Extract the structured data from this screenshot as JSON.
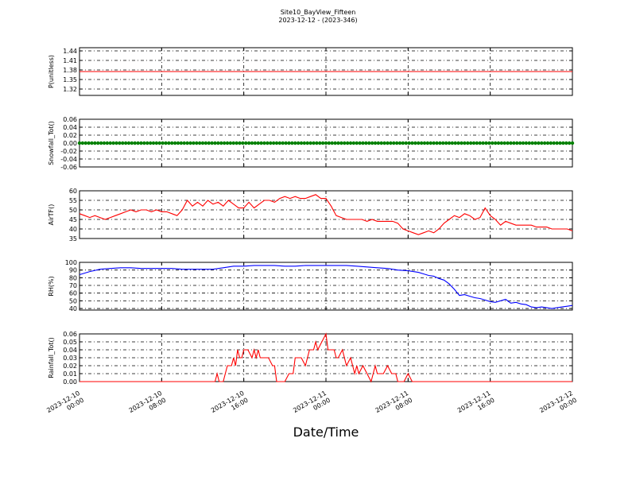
{
  "title": "Site10_BayView_Fifteen",
  "subtitle": "2023-12-12 - (2023-346)",
  "xlabel": "Date/Time",
  "chart_data": {
    "type": "line",
    "grid": true,
    "x_ticks": [
      "2023-12-10 00:00",
      "2023-12-10 08:00",
      "2023-12-10 16:00",
      "2023-12-11 00:00",
      "2023-12-11 08:00",
      "2023-12-11 16:00",
      "2023-12-12 00:00"
    ],
    "xlim_hours": [
      0,
      48
    ],
    "panels": [
      {
        "ylabel": "P(unitless)",
        "ylim": [
          1.3,
          1.45
        ],
        "yticks": [
          1.32,
          1.35,
          1.38,
          1.41,
          1.44
        ],
        "color": "#ff0000",
        "marker": "none",
        "x_hours": [
          0,
          48
        ],
        "values": [
          1.375,
          1.375
        ]
      },
      {
        "ylabel": "Snowfall_Tot()",
        "ylim": [
          -0.06,
          0.06
        ],
        "yticks": [
          0.06,
          0.04,
          0.02,
          0.0,
          -0.02,
          -0.04,
          -0.06
        ],
        "color": "#008000",
        "marker": "dot",
        "x_hours": [
          0,
          48
        ],
        "values": [
          0.0,
          0.0
        ]
      },
      {
        "ylabel": "AirTF()",
        "ylim": [
          35,
          60
        ],
        "yticks": [
          60,
          55,
          50,
          45,
          40,
          35
        ],
        "color": "#ff0000",
        "marker": "none",
        "x_hours": [
          0,
          0.5,
          1,
          1.5,
          2,
          2.5,
          3,
          3.5,
          4,
          4.5,
          5,
          5.5,
          6,
          6.5,
          7,
          7.5,
          8,
          8.5,
          9,
          9.5,
          10,
          10.5,
          11,
          11.5,
          12,
          12.5,
          13,
          13.5,
          14,
          14.5,
          15,
          15.5,
          16,
          16.5,
          17,
          17.5,
          18,
          18.5,
          19,
          19.5,
          20,
          20.5,
          21,
          21.5,
          22,
          22.5,
          23,
          23.5,
          24,
          24.5,
          25,
          25.5,
          26,
          26.5,
          27,
          27.5,
          28,
          28.5,
          29,
          29.5,
          30,
          30.5,
          31,
          31.5,
          32,
          32.5,
          33,
          33.5,
          34,
          34.5,
          35,
          35.5,
          36,
          36.5,
          37,
          37.5,
          38,
          38.5,
          39,
          39.5,
          40,
          40.5,
          41,
          41.5,
          42,
          42.5,
          43,
          43.5,
          44,
          44.5,
          45,
          45.5,
          46,
          46.5,
          47,
          47.5,
          48
        ],
        "values": [
          48,
          47,
          46,
          47,
          46,
          45,
          46,
          47,
          48,
          49,
          50,
          49,
          50,
          50,
          49,
          50,
          49,
          49,
          48,
          47,
          50,
          55,
          52,
          54,
          52,
          55,
          53,
          54,
          52,
          55,
          53,
          51,
          51,
          54,
          51,
          53,
          55,
          55,
          54,
          56,
          57,
          56,
          57,
          56,
          56,
          57,
          58,
          56,
          56,
          52,
          47,
          46,
          45,
          45,
          45,
          45,
          44,
          45,
          44,
          44,
          44,
          44,
          43,
          40,
          39,
          38,
          37,
          38,
          39,
          38,
          40,
          43,
          45,
          47,
          46,
          48,
          47,
          45,
          46,
          51,
          47,
          45,
          42,
          44,
          43,
          42,
          42,
          42,
          42,
          41,
          41,
          41,
          40,
          40,
          40,
          40,
          39
        ]
      },
      {
        "ylabel": "RH(%)",
        "ylim": [
          38,
          100
        ],
        "yticks": [
          100,
          90,
          80,
          70,
          60,
          50,
          40
        ],
        "color": "#0000ff",
        "marker": "none",
        "x_hours": [
          0,
          1,
          2,
          3,
          4,
          5,
          6,
          7,
          8,
          9,
          10,
          11,
          12,
          13,
          14,
          15,
          16,
          17,
          18,
          19,
          20,
          21,
          22,
          23,
          24,
          25,
          26,
          27,
          28,
          29,
          30,
          31,
          32,
          32.5,
          33,
          33.5,
          34,
          34.5,
          35,
          35.5,
          36,
          36.5,
          37,
          37.5,
          38,
          38.5,
          39,
          39.5,
          40,
          40.5,
          41,
          41.5,
          42,
          42.5,
          43,
          43.5,
          44,
          44.5,
          45,
          45.5,
          46,
          46.5,
          47,
          47.5,
          48
        ],
        "values": [
          84,
          88,
          91,
          92,
          93,
          93,
          92,
          92,
          92,
          92,
          91,
          91,
          91,
          91,
          93,
          95,
          95,
          96,
          96,
          96,
          95,
          95,
          96,
          96,
          96,
          96,
          96,
          95,
          94,
          93,
          92,
          90,
          89,
          88,
          87,
          85,
          83,
          82,
          79,
          77,
          72,
          65,
          57,
          58,
          56,
          54,
          53,
          51,
          49,
          48,
          50,
          52,
          47,
          48,
          46,
          45,
          42,
          41,
          42,
          41,
          40,
          41,
          42,
          43,
          44
        ]
      },
      {
        "ylabel": "Rainfall_Tot()",
        "ylim": [
          0,
          0.06
        ],
        "yticks": [
          0.06,
          0.05,
          0.04,
          0.03,
          0.02,
          0.01,
          0.0
        ],
        "color": "#ff0000",
        "marker": "none",
        "x_hours": [
          0,
          13.2,
          13.4,
          13.6,
          14,
          14.4,
          14.8,
          15,
          15.2,
          15.4,
          15.6,
          15.8,
          16,
          16.4,
          16.8,
          17,
          17.2,
          17.4,
          17.6,
          17.8,
          18,
          18.4,
          18.8,
          19,
          19.2,
          19.6,
          20,
          20.4,
          20.8,
          21,
          21.2,
          21.6,
          22,
          22.4,
          22.8,
          23,
          23.2,
          23.6,
          24,
          24.2,
          24.4,
          24.8,
          25,
          25.2,
          25.6,
          26,
          26.4,
          26.8,
          27,
          27.2,
          27.6,
          28,
          28.4,
          28.8,
          29,
          29.2,
          29.6,
          30,
          30.4,
          30.8,
          31,
          31.2,
          31.4,
          31.6,
          32,
          32.4,
          32.8,
          33,
          33.4,
          33.8,
          34,
          34.4,
          34.8,
          35,
          35.2,
          35.6,
          48
        ],
        "values": [
          0,
          0,
          0.01,
          0,
          0,
          0.02,
          0.02,
          0.03,
          0.02,
          0.04,
          0.03,
          0.03,
          0.04,
          0.04,
          0.03,
          0.04,
          0.03,
          0.04,
          0.03,
          0.03,
          0.03,
          0.03,
          0.02,
          0.02,
          0,
          0,
          0,
          0.01,
          0.01,
          0.03,
          0.03,
          0.03,
          0.02,
          0.04,
          0.04,
          0.05,
          0.04,
          0.05,
          0.06,
          0.04,
          0.04,
          0.04,
          0.03,
          0.03,
          0.04,
          0.02,
          0.03,
          0.01,
          0.02,
          0.01,
          0.02,
          0.01,
          0,
          0.02,
          0.01,
          0.01,
          0.01,
          0.02,
          0.01,
          0.01,
          0,
          0,
          0,
          0,
          0.01,
          0,
          0,
          0,
          0,
          0,
          0,
          0,
          0,
          0,
          0,
          0,
          0
        ]
      }
    ]
  }
}
